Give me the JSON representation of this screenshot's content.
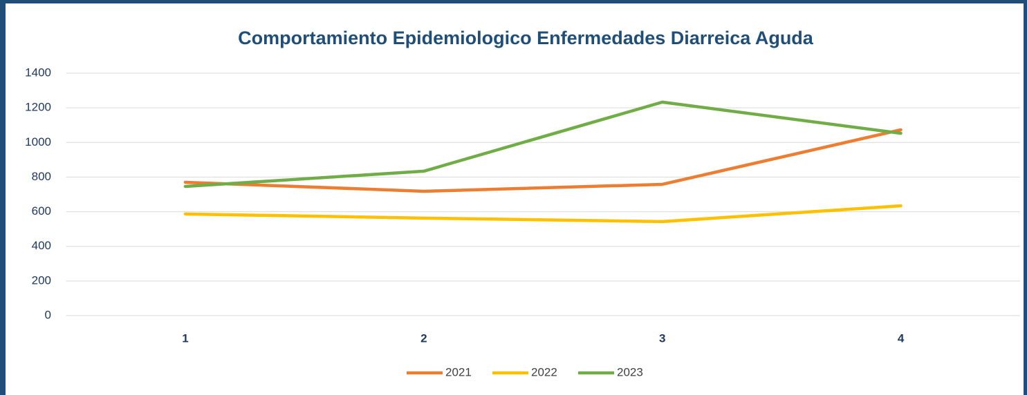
{
  "chart_data": {
    "type": "line",
    "title": "Comportamiento Epidemiologico Enfermedades Diarreica Aguda",
    "categories": [
      "1",
      "2",
      "3",
      "4"
    ],
    "series": [
      {
        "name": "2021",
        "color": "#ed7d31",
        "values": [
          770,
          718,
          758,
          1073
        ]
      },
      {
        "name": "2022",
        "color": "#ffc000",
        "values": [
          587,
          563,
          543,
          634
        ]
      },
      {
        "name": "2023",
        "color": "#70ad47",
        "values": [
          746,
          834,
          1233,
          1053
        ]
      }
    ],
    "ylim": [
      0,
      1400
    ],
    "yticks": [
      0,
      200,
      400,
      600,
      800,
      1000,
      1200,
      1400
    ],
    "grid": true,
    "legend": "bottom"
  }
}
